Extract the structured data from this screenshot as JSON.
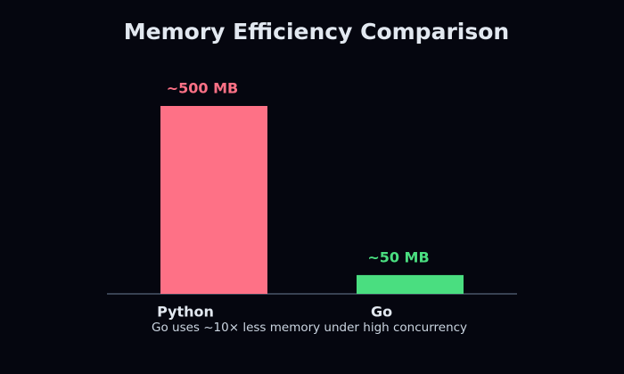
{
  "chart_data": {
    "type": "bar",
    "title": "Memory Efficiency Comparison",
    "caption": "Go uses ~10× less memory under high concurrency",
    "categories": [
      "Python",
      "Go"
    ],
    "values": [
      500,
      50
    ],
    "value_labels": [
      "~500 MB",
      "~50 MB"
    ],
    "colors": [
      "#fe7186",
      "#4ade80"
    ]
  }
}
